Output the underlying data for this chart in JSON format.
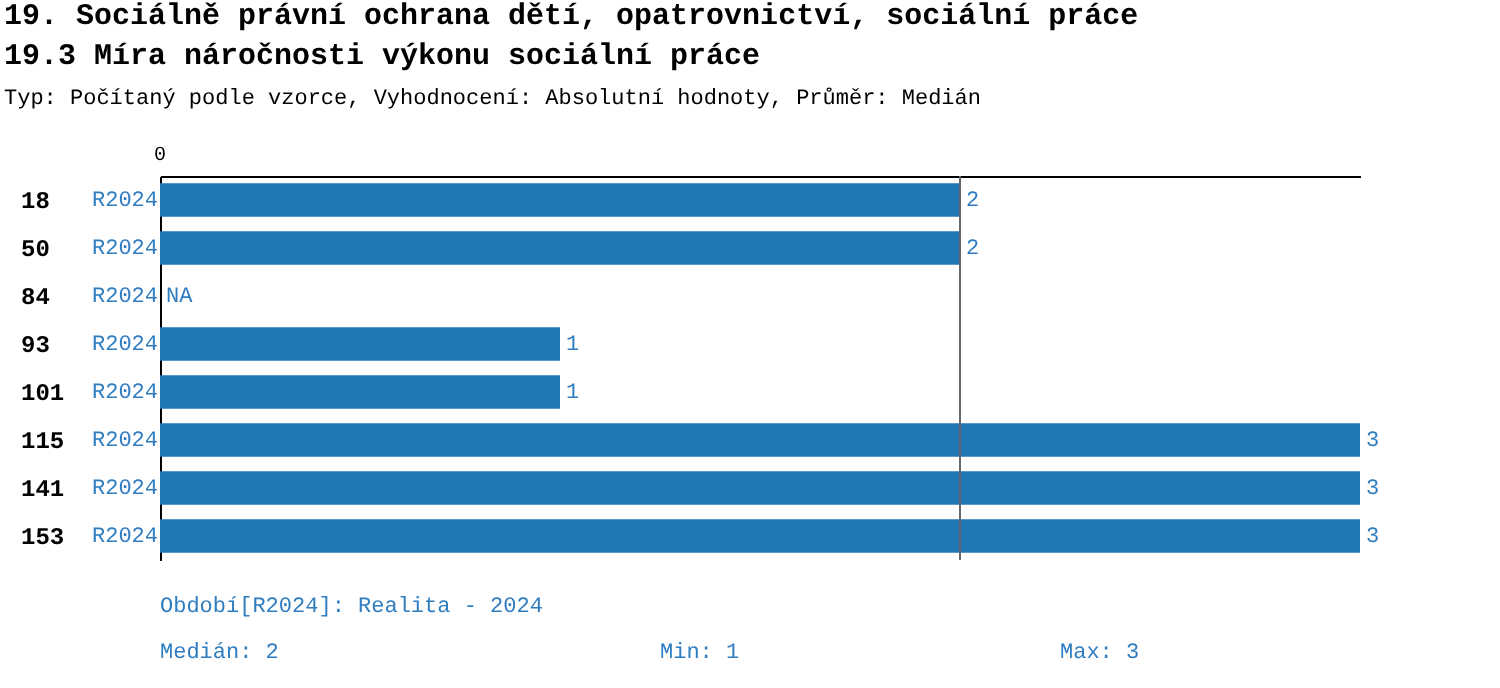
{
  "chart_data": {
    "type": "bar",
    "orientation": "horizontal",
    "title": "19. Sociálně právní ochrana dětí, opatrovnictví, sociální práce",
    "subtitle": "19.3 Míra náročnosti výkonu sociální práce",
    "annotations": [
      "Typ: Počítaný podle vzorce, Vyhodnocení: Absolutní hodnoty, Průměr: Medián",
      "Období[R2024]: Realita - 2024",
      "Medián: 2",
      "Min: 1",
      "Max: 3",
      "0"
    ],
    "categories": [
      "18",
      "50",
      "84",
      "93",
      "101",
      "115",
      "141",
      "153"
    ],
    "series": [
      {
        "name": "R2024",
        "color": "#1f77b4",
        "values": [
          2,
          2,
          null,
          1,
          1,
          3,
          3,
          3
        ],
        "value_labels": [
          "2",
          "2",
          "NA",
          "1",
          "1",
          "3",
          "3",
          "3"
        ]
      }
    ],
    "xlim": [
      0,
      3
    ],
    "ref_lines": [
      {
        "axis": "x",
        "value": 2,
        "color": "#666666"
      }
    ]
  }
}
